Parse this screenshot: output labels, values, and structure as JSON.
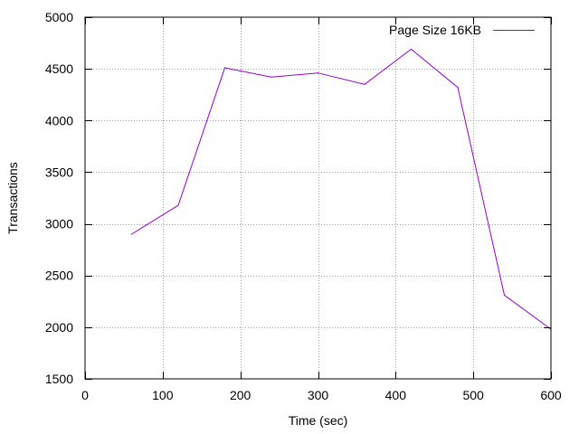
{
  "chart_data": {
    "type": "line",
    "title": "",
    "xlabel": "Time (sec)",
    "ylabel": "Transactions",
    "xlim": [
      0,
      600
    ],
    "ylim": [
      1500,
      5000
    ],
    "xticks": [
      0,
      100,
      200,
      300,
      400,
      500,
      600
    ],
    "yticks": [
      1500,
      2000,
      2500,
      3000,
      3500,
      4000,
      4500,
      5000
    ],
    "grid": true,
    "legend_position": "top-right",
    "series": [
      {
        "name": "Page Size 16KB",
        "color": "#9400d3",
        "x": [
          60,
          120,
          180,
          240,
          300,
          360,
          420,
          480,
          540,
          600
        ],
        "y": [
          2900,
          3180,
          4510,
          4420,
          4460,
          4350,
          4690,
          4320,
          2310,
          1980
        ]
      }
    ]
  }
}
